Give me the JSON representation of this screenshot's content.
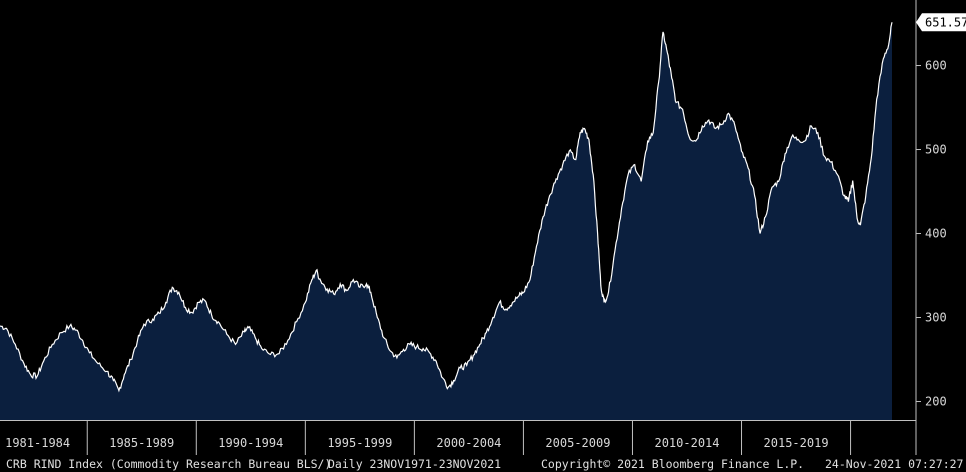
{
  "chart_data": {
    "type": "area",
    "series_label": "CRB RIND Index (Commodity Research Bureau BLS/)",
    "frequency": "Daily 23NOV1971-23NOV2021",
    "last_value": 651.57,
    "last_value_label": "651.57",
    "y_ticks": [
      200,
      300,
      400,
      500,
      600
    ],
    "ylim": [
      178,
      678
    ],
    "x_tick_labels": [
      "1981-1984",
      "1985-1989",
      "1990-1994",
      "1995-1999",
      "2000-2004",
      "2005-2009",
      "2010-2014",
      "2015-2019"
    ],
    "xlim": [
      1981.0,
      2021.9
    ],
    "points": [
      [
        1981.0,
        290
      ],
      [
        1981.3,
        287
      ],
      [
        1981.7,
        268
      ],
      [
        1982.1,
        245
      ],
      [
        1982.4,
        232
      ],
      [
        1982.7,
        230
      ],
      [
        1983.0,
        248
      ],
      [
        1983.4,
        268
      ],
      [
        1983.8,
        282
      ],
      [
        1984.2,
        290
      ],
      [
        1984.5,
        285
      ],
      [
        1984.8,
        272
      ],
      [
        1985.1,
        258
      ],
      [
        1985.5,
        245
      ],
      [
        1985.9,
        236
      ],
      [
        1986.2,
        225
      ],
      [
        1986.45,
        213
      ],
      [
        1986.7,
        232
      ],
      [
        1987.0,
        250
      ],
      [
        1987.3,
        272
      ],
      [
        1987.6,
        292
      ],
      [
        1988.0,
        298
      ],
      [
        1988.3,
        305
      ],
      [
        1988.6,
        318
      ],
      [
        1988.9,
        336
      ],
      [
        1989.2,
        330
      ],
      [
        1989.5,
        312
      ],
      [
        1989.8,
        306
      ],
      [
        1990.1,
        318
      ],
      [
        1990.4,
        320
      ],
      [
        1990.7,
        303
      ],
      [
        1991.0,
        295
      ],
      [
        1991.4,
        280
      ],
      [
        1991.8,
        268
      ],
      [
        1992.2,
        283
      ],
      [
        1992.4,
        288
      ],
      [
        1992.7,
        276
      ],
      [
        1993.0,
        263
      ],
      [
        1993.4,
        256
      ],
      [
        1993.8,
        257
      ],
      [
        1994.2,
        273
      ],
      [
        1994.6,
        295
      ],
      [
        1995.0,
        318
      ],
      [
        1995.3,
        345
      ],
      [
        1995.5,
        356
      ],
      [
        1995.7,
        344
      ],
      [
        1996.0,
        334
      ],
      [
        1996.3,
        328
      ],
      [
        1996.6,
        340
      ],
      [
        1996.9,
        332
      ],
      [
        1997.2,
        345
      ],
      [
        1997.5,
        336
      ],
      [
        1997.8,
        340
      ],
      [
        1998.0,
        330
      ],
      [
        1998.3,
        300
      ],
      [
        1998.6,
        276
      ],
      [
        1998.9,
        260
      ],
      [
        1999.2,
        252
      ],
      [
        1999.5,
        262
      ],
      [
        1999.8,
        268
      ],
      [
        2000.1,
        265
      ],
      [
        2000.4,
        263
      ],
      [
        2000.7,
        258
      ],
      [
        2001.0,
        248
      ],
      [
        2001.3,
        228
      ],
      [
        2001.55,
        217
      ],
      [
        2001.8,
        225
      ],
      [
        2002.1,
        240
      ],
      [
        2002.4,
        243
      ],
      [
        2002.7,
        255
      ],
      [
        2003.0,
        268
      ],
      [
        2003.3,
        282
      ],
      [
        2003.6,
        300
      ],
      [
        2003.9,
        318
      ],
      [
        2004.2,
        310
      ],
      [
        2004.5,
        318
      ],
      [
        2004.8,
        326
      ],
      [
        2005.0,
        330
      ],
      [
        2005.3,
        345
      ],
      [
        2005.6,
        385
      ],
      [
        2005.9,
        420
      ],
      [
        2006.2,
        445
      ],
      [
        2006.5,
        465
      ],
      [
        2006.8,
        482
      ],
      [
        2007.1,
        498
      ],
      [
        2007.4,
        488
      ],
      [
        2007.6,
        520
      ],
      [
        2007.8,
        525
      ],
      [
        2008.0,
        512
      ],
      [
        2008.2,
        470
      ],
      [
        2008.4,
        400
      ],
      [
        2008.55,
        338
      ],
      [
        2008.7,
        318
      ],
      [
        2008.9,
        330
      ],
      [
        2009.2,
        380
      ],
      [
        2009.5,
        430
      ],
      [
        2009.8,
        470
      ],
      [
        2010.1,
        482
      ],
      [
        2010.4,
        462
      ],
      [
        2010.7,
        510
      ],
      [
        2010.95,
        520
      ],
      [
        2011.2,
        580
      ],
      [
        2011.4,
        640
      ],
      [
        2011.6,
        615
      ],
      [
        2011.8,
        585
      ],
      [
        2012.0,
        556
      ],
      [
        2012.3,
        548
      ],
      [
        2012.6,
        515
      ],
      [
        2012.9,
        510
      ],
      [
        2013.2,
        528
      ],
      [
        2013.5,
        535
      ],
      [
        2013.8,
        525
      ],
      [
        2014.1,
        530
      ],
      [
        2014.4,
        543
      ],
      [
        2014.7,
        528
      ],
      [
        2015.0,
        498
      ],
      [
        2015.3,
        478
      ],
      [
        2015.6,
        445
      ],
      [
        2015.85,
        400
      ],
      [
        2016.1,
        420
      ],
      [
        2016.4,
        455
      ],
      [
        2016.7,
        462
      ],
      [
        2017.0,
        495
      ],
      [
        2017.3,
        515
      ],
      [
        2017.6,
        512
      ],
      [
        2017.9,
        510
      ],
      [
        2018.2,
        528
      ],
      [
        2018.5,
        520
      ],
      [
        2018.8,
        492
      ],
      [
        2019.1,
        485
      ],
      [
        2019.4,
        470
      ],
      [
        2019.7,
        445
      ],
      [
        2019.9,
        438
      ],
      [
        2020.1,
        463
      ],
      [
        2020.3,
        418
      ],
      [
        2020.45,
        410
      ],
      [
        2020.7,
        445
      ],
      [
        2020.95,
        490
      ],
      [
        2021.2,
        560
      ],
      [
        2021.5,
        608
      ],
      [
        2021.75,
        625
      ],
      [
        2021.9,
        651.57
      ]
    ]
  },
  "footer": {
    "title": "CRB RIND Index (Commodity Research Bureau BLS/)",
    "range": "Daily 23NOV1971-23NOV2021",
    "copyright": "Copyright© 2021 Bloomberg Finance L.P.",
    "timestamp": "24-Nov-2021 07:27:27"
  },
  "colors": {
    "background": "#000000",
    "fill": "#0b1f3e",
    "line": "#ffffff",
    "axis": "#c0c0c0"
  }
}
